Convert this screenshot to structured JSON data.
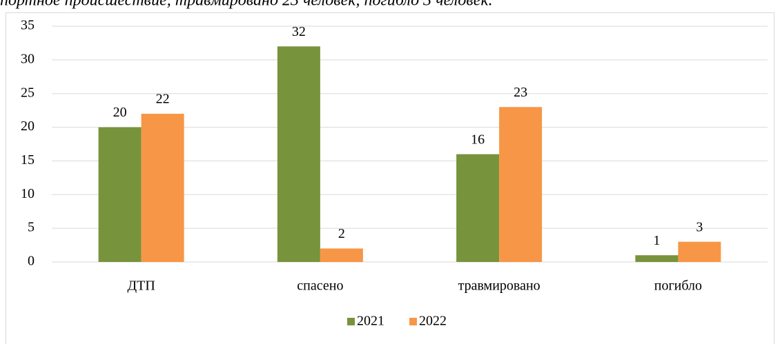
{
  "caption": "портное происшествие, травмировано 23 человек, погибло 3 человек.",
  "chart_data": {
    "type": "bar",
    "categories": [
      "ДТП",
      "спасено",
      "травмировано",
      "погибло"
    ],
    "series": [
      {
        "name": "2021",
        "color": "#77933c",
        "values": [
          20,
          32,
          16,
          1
        ]
      },
      {
        "name": "2022",
        "color": "#f79646",
        "values": [
          22,
          2,
          23,
          3
        ]
      }
    ],
    "ylim": [
      0,
      35
    ],
    "yticks": [
      0,
      5,
      10,
      15,
      20,
      25,
      30,
      35
    ],
    "grid": true,
    "legend": "bottom"
  }
}
